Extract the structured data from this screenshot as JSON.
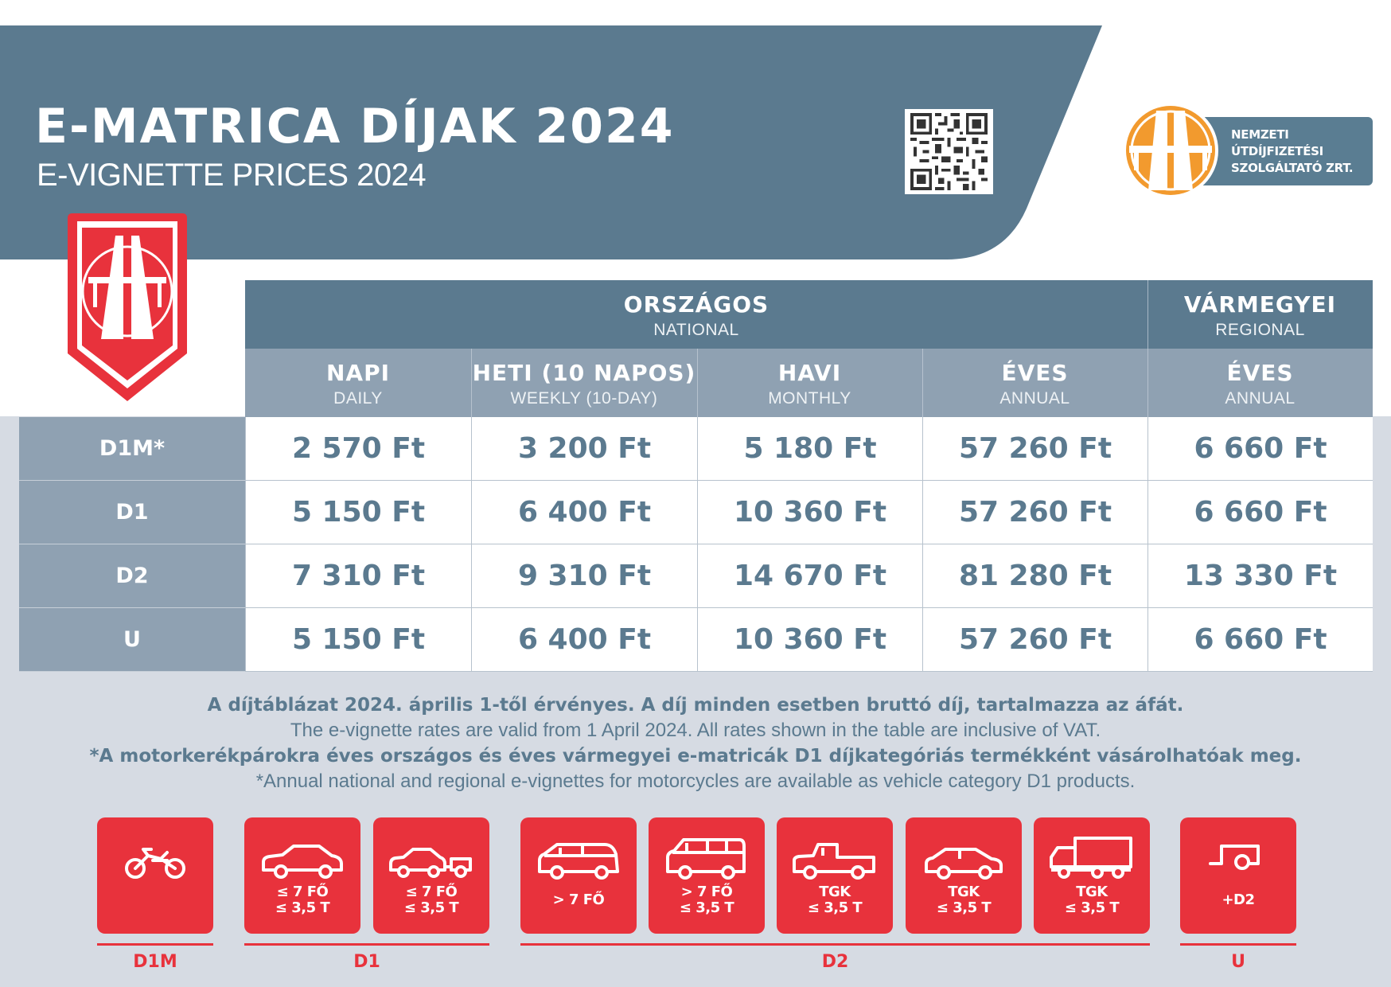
{
  "header": {
    "title": "E-MATRICA DÍJAK 2024",
    "subtitle": "E-VIGNETTE PRICES 2024"
  },
  "company": {
    "line1": "NEMZETI",
    "line2": "ÚTDÍJFIZETÉSI",
    "line3": "SZOLGÁLTATÓ ZRT."
  },
  "table": {
    "group_national": {
      "hu": "ORSZÁGOS",
      "en": "NATIONAL"
    },
    "group_regional": {
      "hu": "VÁRMEGYEI",
      "en": "REGIONAL"
    },
    "columns": [
      {
        "hu": "NAPI",
        "en": "DAILY"
      },
      {
        "hu": "HETI (10 NAPOS)",
        "en": "WEEKLY (10-DAY)"
      },
      {
        "hu": "HAVI",
        "en": "MONTHLY"
      },
      {
        "hu": "ÉVES",
        "en": "ANNUAL"
      },
      {
        "hu": "ÉVES",
        "en": "ANNUAL"
      }
    ],
    "rows": [
      {
        "label": "D1M*",
        "values": [
          "2 570 Ft",
          "3 200 Ft",
          "5 180 Ft",
          "57 260 Ft",
          "6 660 Ft"
        ]
      },
      {
        "label": "D1",
        "values": [
          "5 150 Ft",
          "6 400 Ft",
          "10 360 Ft",
          "57 260 Ft",
          "6 660 Ft"
        ]
      },
      {
        "label": "D2",
        "values": [
          "7 310 Ft",
          "9 310 Ft",
          "14 670 Ft",
          "81 280 Ft",
          "13 330 Ft"
        ]
      },
      {
        "label": "U",
        "values": [
          "5 150 Ft",
          "6 400 Ft",
          "10 360 Ft",
          "57 260 Ft",
          "6 660 Ft"
        ]
      }
    ]
  },
  "notes": {
    "line1": "A díjtáblázat 2024. április 1-től érvényes. A díj minden esetben bruttó díj, tartalmazza az áfát.",
    "line2": "The e-vignette rates are valid from 1 April 2024. All rates shown in the table are inclusive of VAT.",
    "line3": "*A motorkerékpárokra éves országos és éves vármegyei e-matricák D1 díjkategóriás termékként vásárolhatóak meg.",
    "line4": "*Annual national and regional e-vignettes for motorcycles are available as vehicle category D1 products."
  },
  "vehicles": [
    {
      "icon": "motorcycle-icon",
      "line1": "",
      "line2": ""
    },
    {
      "icon": "car-icon",
      "line1": "≤ 7 FŐ",
      "line2": "≤ 3,5 T"
    },
    {
      "icon": "car-with-trailer-icon",
      "line1": "≤ 7 FŐ",
      "line2": "≤ 3,5 T"
    },
    {
      "icon": "minivan-icon",
      "line1": "> 7 FŐ",
      "line2": ""
    },
    {
      "icon": "van-icon",
      "line1": "> 7 FŐ",
      "line2": "≤ 3,5 T"
    },
    {
      "icon": "pickup-truck-icon",
      "line1": "TGK",
      "line2": "≤ 3,5 T"
    },
    {
      "icon": "small-car-icon",
      "line1": "TGK",
      "line2": "≤ 3,5 T"
    },
    {
      "icon": "box-truck-icon",
      "line1": "TGK",
      "line2": "≤ 3,5 T"
    },
    {
      "icon": "trailer-icon",
      "line1": "+D2",
      "line2": ""
    }
  ],
  "categories": [
    "D1M",
    "D1",
    "D2",
    "U"
  ],
  "colors": {
    "header_blue": "#5b7a8f",
    "subheader_gray": "#8fa1b2",
    "accent_red": "#e8323c",
    "logo_orange": "#f29a2e",
    "panel_gray": "#d6dbe3"
  }
}
